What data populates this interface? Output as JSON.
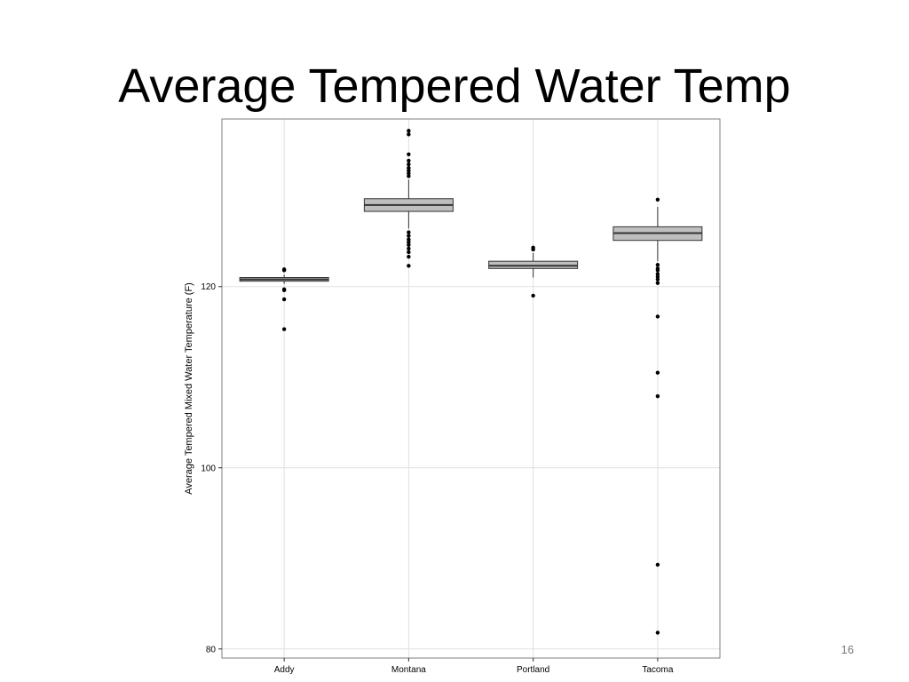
{
  "slide": {
    "title": "Average Tempered Water Temp",
    "number": "16"
  },
  "chart_data": {
    "type": "boxplot",
    "title": "",
    "xlabel": "",
    "ylabel": "Average Tempered Mixed Water Temperature (F)",
    "ylim": [
      79,
      138.5
    ],
    "yticks": [
      80,
      100,
      120
    ],
    "grid": true,
    "legend": "none",
    "colors": {
      "box_fill": "#bfbfbf",
      "box_stroke": "#333333",
      "grid": "#e0e0e0",
      "panel_border": "#7f7f7f",
      "point": "#000000"
    },
    "categories": [
      "Addy",
      "Montana",
      "Portland",
      "Tacoma"
    ],
    "boxes": [
      {
        "category": "Addy",
        "q1": 120.6,
        "median": 120.8,
        "q3": 121.0,
        "whisker_low": 120.3,
        "whisker_high": 121.3,
        "outliers": [
          121.8,
          121.9,
          119.7,
          119.6,
          118.6,
          115.3
        ]
      },
      {
        "category": "Montana",
        "q1": 128.3,
        "median": 129.0,
        "q3": 129.7,
        "whisker_low": 126.4,
        "whisker_high": 131.8,
        "outliers": [
          137.2,
          136.8,
          134.6,
          133.9,
          133.5,
          133.1,
          132.8,
          132.5,
          132.2,
          126.0,
          125.6,
          125.2,
          124.9,
          124.6,
          124.2,
          123.8,
          123.3,
          122.3
        ]
      },
      {
        "category": "Portland",
        "q1": 122.0,
        "median": 122.3,
        "q3": 122.8,
        "whisker_low": 121.0,
        "whisker_high": 123.7,
        "outliers": [
          124.3,
          124.1,
          119.0
        ]
      },
      {
        "category": "Tacoma",
        "q1": 125.1,
        "median": 125.9,
        "q3": 126.6,
        "whisker_low": 122.8,
        "whisker_high": 128.8,
        "outliers": [
          129.6,
          122.4,
          122.0,
          121.8,
          121.4,
          121.1,
          120.8,
          120.4,
          116.7,
          110.5,
          107.9,
          89.3,
          81.8
        ]
      }
    ]
  }
}
